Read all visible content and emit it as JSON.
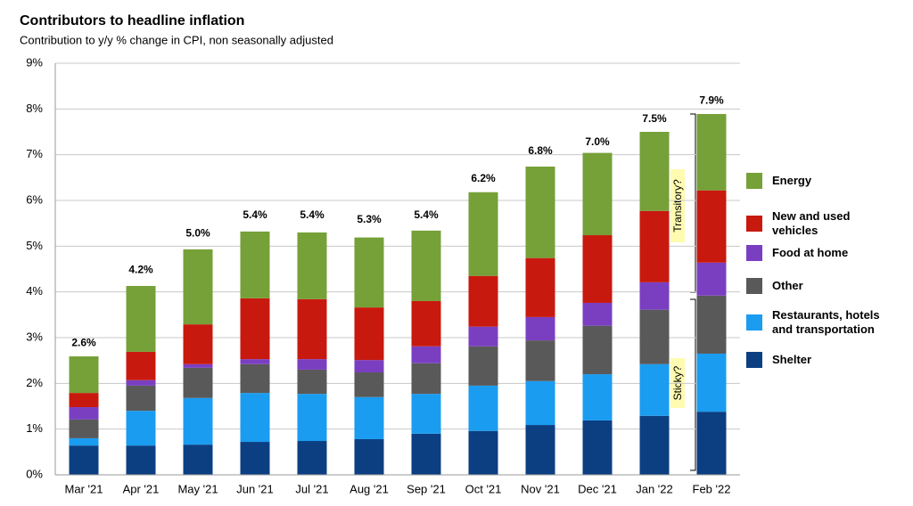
{
  "chart_data": {
    "type": "stacked-bar",
    "title": "Contributors to headline inflation",
    "subtitle": "Contribution to y/y % change in CPI, non seasonally adjusted",
    "categories": [
      "Mar '21",
      "Apr '21",
      "May '21",
      "Jun '21",
      "Jul '21",
      "Aug '21",
      "Sep '21",
      "Oct '21",
      "Nov '21",
      "Dec '21",
      "Jan '22",
      "Feb '22"
    ],
    "series": [
      {
        "name": "Shelter",
        "color": "#0b3f82",
        "values": [
          0.64,
          0.64,
          0.66,
          0.72,
          0.74,
          0.78,
          0.9,
          0.96,
          1.09,
          1.19,
          1.29,
          1.38
        ]
      },
      {
        "name": "Restaurants, hotels and transportation",
        "color": "#1a9cf0",
        "values": [
          0.16,
          0.76,
          1.02,
          1.07,
          1.03,
          0.92,
          0.87,
          0.99,
          0.96,
          1.01,
          1.13,
          1.27
        ]
      },
      {
        "name": "Other",
        "color": "#595959",
        "values": [
          0.41,
          0.55,
          0.66,
          0.63,
          0.53,
          0.54,
          0.67,
          0.86,
          0.89,
          1.06,
          1.19,
          1.27
        ]
      },
      {
        "name": "Food at home",
        "color": "#7a3fc1",
        "values": [
          0.27,
          0.12,
          0.08,
          0.11,
          0.23,
          0.27,
          0.37,
          0.43,
          0.51,
          0.5,
          0.6,
          0.72
        ]
      },
      {
        "name": "New and used vehicles",
        "color": "#c8190e",
        "values": [
          0.31,
          0.62,
          0.87,
          1.33,
          1.31,
          1.15,
          0.99,
          1.11,
          1.29,
          1.48,
          1.56,
          1.58
        ]
      },
      {
        "name": "Energy",
        "color": "#76a038",
        "values": [
          0.8,
          1.44,
          1.64,
          1.46,
          1.46,
          1.53,
          1.54,
          1.83,
          2.0,
          1.8,
          1.73,
          1.67
        ]
      }
    ],
    "totals": {
      "values": [
        2.6,
        4.2,
        5.0,
        5.4,
        5.4,
        5.3,
        5.4,
        6.2,
        6.8,
        7.0,
        7.5,
        7.9
      ],
      "value_labels": [
        "2.6%",
        "4.2%",
        "5.0%",
        "5.4%",
        "5.4%",
        "5.3%",
        "5.4%",
        "6.2%",
        "6.8%",
        "7.0%",
        "7.5%",
        "7.9%"
      ]
    },
    "annotations": [
      "Transitory?",
      "Sticky?"
    ],
    "ylim": [
      0,
      9
    ],
    "yticks": [
      {
        "value": 0,
        "label": "0%"
      },
      {
        "value": 1,
        "label": "1%"
      },
      {
        "value": 2,
        "label": "2%"
      },
      {
        "value": 3,
        "label": "3%"
      },
      {
        "value": 4,
        "label": "4%"
      },
      {
        "value": 5,
        "label": "5%"
      },
      {
        "value": 6,
        "label": "6%"
      },
      {
        "value": 7,
        "label": "7%"
      },
      {
        "value": 8,
        "label": "8%"
      },
      {
        "value": 9,
        "label": "9%"
      }
    ],
    "grid": true,
    "legend": "right"
  }
}
